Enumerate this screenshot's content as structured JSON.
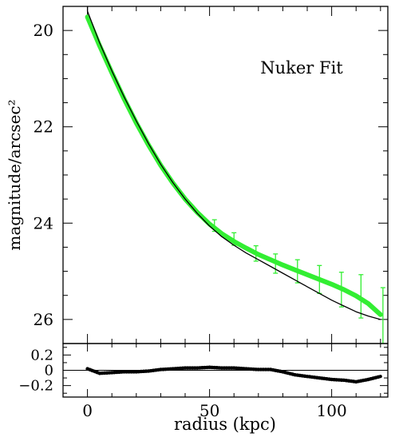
{
  "chart_data": [
    {
      "type": "line",
      "panel": "main",
      "annotation": "Nuker Fit",
      "ylabel": "magnitude/arcsec²",
      "xlim": [
        -10,
        123
      ],
      "ylim": [
        26.5,
        19.5
      ],
      "y_inverted": true,
      "y_ticks": [
        20,
        22,
        24,
        26
      ],
      "y_tick_labels": [
        "20",
        "22",
        "24",
        "26"
      ],
      "series": [
        {
          "kind": "data",
          "color": "#33ee33",
          "x": [
            0,
            5,
            10,
            15,
            20,
            25,
            30,
            35,
            40,
            45,
            50,
            55,
            60,
            65,
            70,
            75,
            80,
            85,
            90,
            95,
            100,
            105,
            110,
            115,
            120
          ],
          "y": [
            19.72,
            20.32,
            20.88,
            21.42,
            21.92,
            22.38,
            22.8,
            23.17,
            23.5,
            23.78,
            24.02,
            24.22,
            24.38,
            24.52,
            24.65,
            24.76,
            24.87,
            24.97,
            25.07,
            25.17,
            25.27,
            25.38,
            25.51,
            25.67,
            25.9
          ]
        },
        {
          "kind": "fit",
          "color": "#000000",
          "x": [
            0,
            5,
            10,
            15,
            20,
            25,
            30,
            35,
            40,
            45,
            50,
            55,
            60,
            65,
            70,
            75,
            80,
            85,
            90,
            95,
            100,
            105,
            110,
            115,
            120
          ],
          "y": [
            19.6,
            20.26,
            20.84,
            21.38,
            21.88,
            22.35,
            22.78,
            23.16,
            23.5,
            23.8,
            24.06,
            24.28,
            24.46,
            24.62,
            24.76,
            24.9,
            25.04,
            25.18,
            25.32,
            25.46,
            25.6,
            25.72,
            25.84,
            25.93,
            26.0
          ]
        }
      ],
      "error_bars": [
        {
          "x": 52,
          "y": 24.05,
          "err": 0.12
        },
        {
          "x": 60,
          "y": 24.33,
          "err": 0.13
        },
        {
          "x": 69,
          "y": 24.63,
          "err": 0.16
        },
        {
          "x": 77,
          "y": 24.84,
          "err": 0.2
        },
        {
          "x": 86,
          "y": 25.0,
          "err": 0.24
        },
        {
          "x": 95,
          "y": 25.17,
          "err": 0.29
        },
        {
          "x": 104,
          "y": 25.38,
          "err": 0.36
        },
        {
          "x": 112,
          "y": 25.52,
          "err": 0.45
        },
        {
          "x": 121,
          "y": 25.92,
          "err": 0.58
        }
      ]
    },
    {
      "type": "line",
      "panel": "residuals",
      "xlabel": "radius (kpc)",
      "x_ticks": [
        0,
        50,
        100
      ],
      "x_tick_labels": [
        "0",
        "50",
        "100"
      ],
      "ylim": [
        -0.35,
        0.35
      ],
      "y_ticks": [
        0.2,
        0,
        -0.2
      ],
      "y_tick_labels": [
        "0.2",
        "0",
        "−0.2"
      ],
      "reference_line": 0,
      "series": [
        {
          "kind": "residual",
          "color": "#000000",
          "x": [
            0,
            5,
            10,
            15,
            20,
            25,
            30,
            35,
            40,
            45,
            50,
            55,
            60,
            65,
            70,
            75,
            80,
            85,
            90,
            95,
            100,
            105,
            110,
            115,
            120
          ],
          "y": [
            0.02,
            -0.04,
            -0.03,
            -0.02,
            -0.02,
            -0.01,
            0.01,
            0.02,
            0.03,
            0.03,
            0.04,
            0.03,
            0.03,
            0.02,
            0.01,
            0.01,
            -0.02,
            -0.06,
            -0.08,
            -0.1,
            -0.12,
            -0.13,
            -0.15,
            -0.12,
            -0.08
          ]
        }
      ]
    }
  ]
}
